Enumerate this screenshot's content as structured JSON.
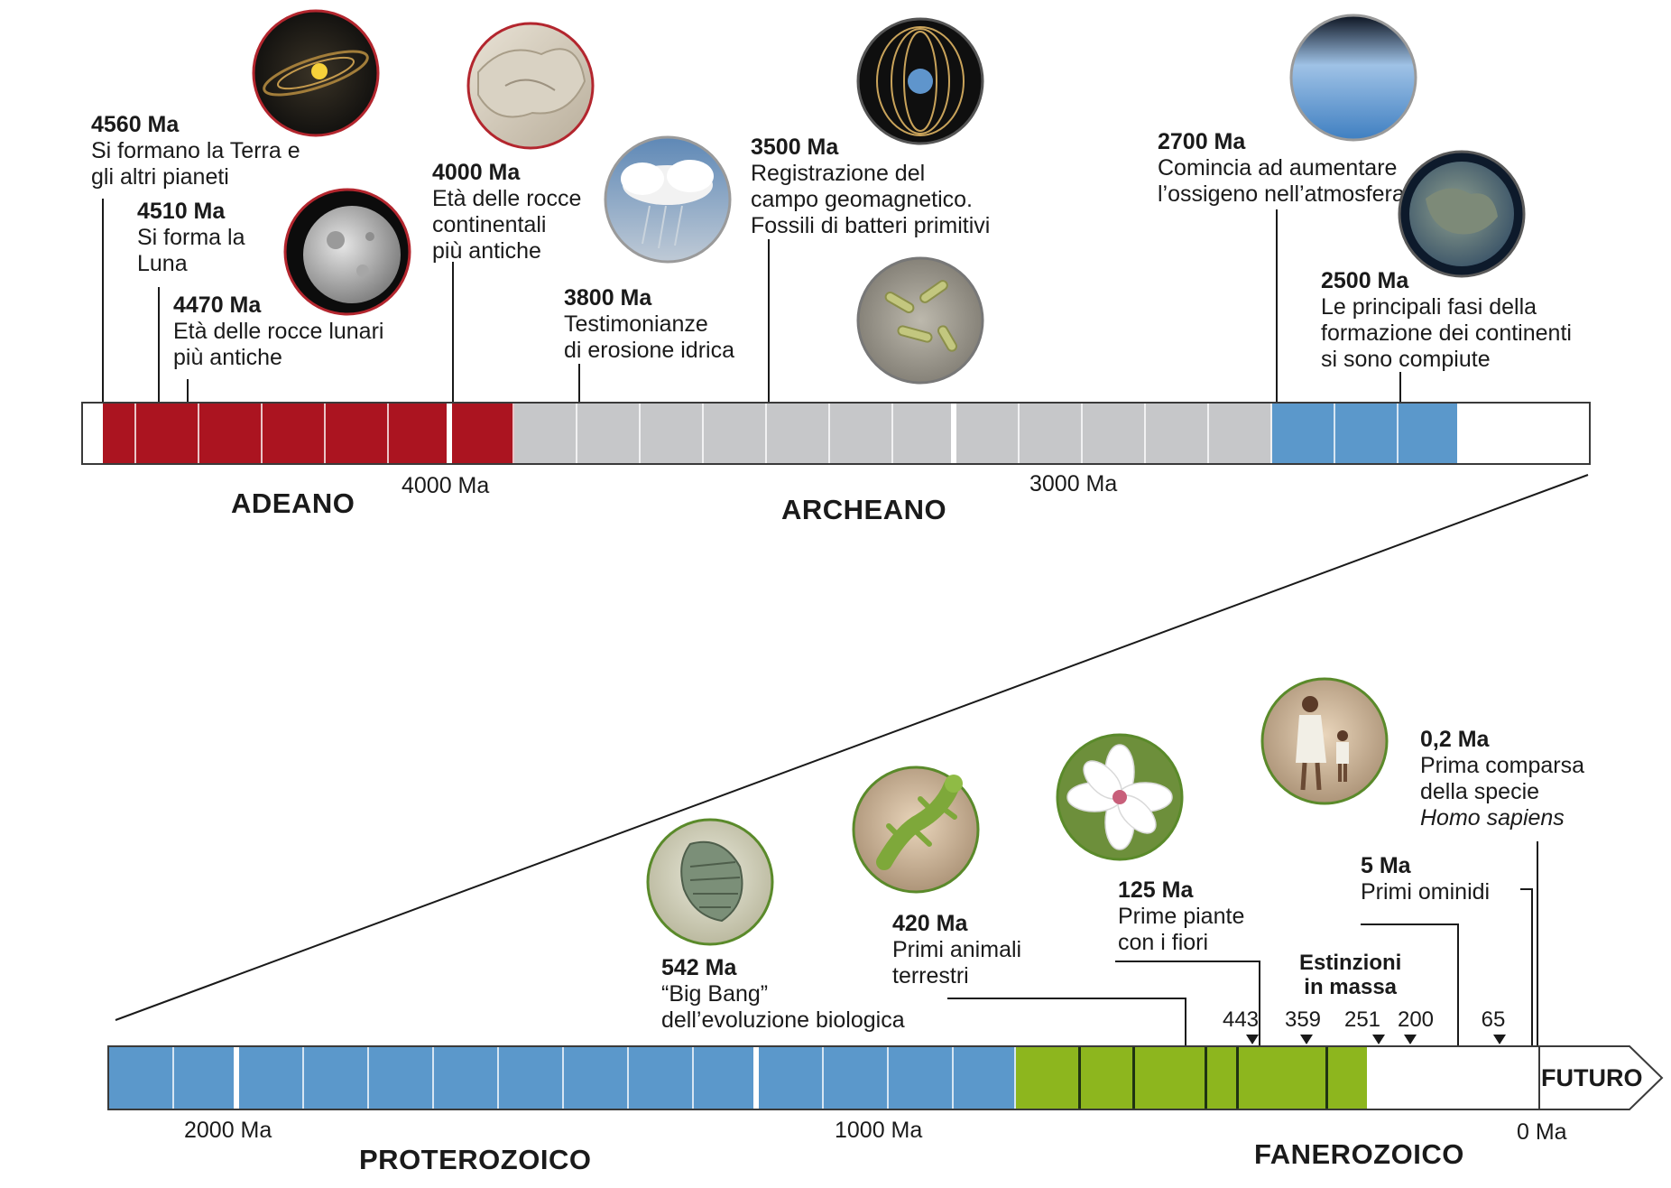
{
  "colors": {
    "hadean": "#ab1420",
    "archean": "#c6c7c9",
    "proterozoic": "#5b98cb",
    "phanerozoic": "#8db61e",
    "outline": "#3a3a3a"
  },
  "top_timeline": {
    "scale_labels": [
      "4000 Ma",
      "3000 Ma"
    ],
    "eons": [
      "ADEANO",
      "ARCHEANO"
    ],
    "events": [
      {
        "age": "4560 Ma",
        "desc": "Si formano la Terra e\ngli altri pianeti",
        "icon": "solar-system-icon"
      },
      {
        "age": "4510 Ma",
        "desc": "Si forma la\nLuna",
        "icon": "moon-icon"
      },
      {
        "age": "4470 Ma",
        "desc": "Età delle rocce lunari\npiù antiche",
        "icon": ""
      },
      {
        "age": "4000 Ma",
        "desc": "Età delle rocce\ncontinentali\npiù antiche",
        "icon": "rock-icon"
      },
      {
        "age": "3800 Ma",
        "desc": "Testimonianze\ndi erosione idrica",
        "icon": "rain-cloud-icon"
      },
      {
        "age": "3500 Ma",
        "desc": "Registrazione del\ncampo geomagnetico.\nFossili di batteri primitivi",
        "icon": "magnetic-field-icon"
      },
      {
        "age": "2700 Ma",
        "desc": "Comincia ad aumentare\nl’ossigeno nell’atmosfera",
        "icon": "atmosphere-icon"
      },
      {
        "age": "2500 Ma",
        "desc": "Le principali fasi della\nformazione dei continenti\nsi sono compiute",
        "icon": "early-earth-icon"
      }
    ]
  },
  "bottom_timeline": {
    "scale_labels": [
      "2000 Ma",
      "1000 Ma",
      "0 Ma"
    ],
    "eons": [
      "PROTEROZOICO",
      "FANEROZOICO"
    ],
    "futuro": "FUTURO",
    "extinctions_title": "Estinzioni\nin massa",
    "extinctions": [
      "443",
      "359",
      "251",
      "200",
      "65"
    ],
    "events": [
      {
        "age": "542 Ma",
        "desc": "“Big Bang”\ndell’evoluzione biologica",
        "icon": "trilobite-icon"
      },
      {
        "age": "420 Ma",
        "desc": "Primi animali\nterrestri",
        "icon": "amphibian-icon"
      },
      {
        "age": "125 Ma",
        "desc": "Prime piante\ncon i fiori",
        "icon": "flower-icon"
      },
      {
        "age": "5 Ma",
        "desc": "Primi ominidi",
        "icon": "hominids-icon"
      },
      {
        "age": "0,2 Ma",
        "desc": "Prima comparsa\ndella specie",
        "em": "Homo sapiens",
        "icon": ""
      }
    ]
  }
}
